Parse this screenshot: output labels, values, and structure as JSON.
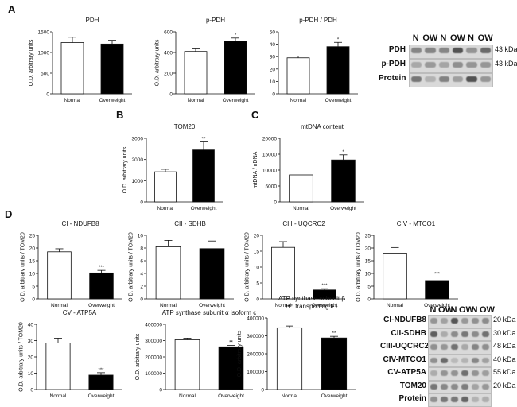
{
  "panel_labels": {
    "a": "A",
    "b": "B",
    "c": "C",
    "d": "D"
  },
  "chart_data": [
    {
      "id": "pdh",
      "type": "bar",
      "title": [
        "PDH"
      ],
      "ylabel": [
        "O.D. arbitrary units"
      ],
      "categories": [
        "Normal",
        "Overweight"
      ],
      "values": [
        1240,
        1205
      ],
      "errors": [
        130,
        90
      ],
      "significance": [
        "",
        ""
      ],
      "ylim": [
        0,
        1500
      ],
      "yticks": [
        "0",
        "500",
        "1000",
        "1500"
      ]
    },
    {
      "id": "ppdh",
      "type": "bar",
      "title": [
        "p-PDH"
      ],
      "ylabel": [
        "O.D. arbitrary units"
      ],
      "categories": [
        "Normal",
        "Overweight"
      ],
      "values": [
        410,
        510
      ],
      "errors": [
        25,
        30
      ],
      "significance": [
        "",
        "*"
      ],
      "ylim": [
        0,
        600
      ],
      "yticks": [
        "0",
        "200",
        "400",
        "600"
      ]
    },
    {
      "id": "ratio",
      "type": "bar",
      "title": [
        "p-PDH / PDH"
      ],
      "ylabel": [
        ""
      ],
      "categories": [
        "Normal",
        "Overweight"
      ],
      "values": [
        29,
        38
      ],
      "errors": [
        1.5,
        3.5
      ],
      "significance": [
        "",
        "*"
      ],
      "ylim": [
        0,
        50
      ],
      "yticks": [
        "0",
        "10",
        "20",
        "30",
        "40",
        "50"
      ]
    },
    {
      "id": "tom20",
      "type": "bar",
      "title": [
        "TOM20"
      ],
      "ylabel": [
        "O.D. arbitrary units"
      ],
      "categories": [
        "Normal",
        "Overweight"
      ],
      "values": [
        1420,
        2450
      ],
      "errors": [
        120,
        380
      ],
      "significance": [
        "",
        "**"
      ],
      "ylim": [
        0,
        3000
      ],
      "yticks": [
        "0",
        "1000",
        "2000",
        "3000"
      ]
    },
    {
      "id": "mtdna",
      "type": "bar",
      "title": [
        "mtDNA content"
      ],
      "ylabel": [
        "mtDNA / nDNA"
      ],
      "categories": [
        "Normal",
        "Overweight"
      ],
      "values": [
        8500,
        13200
      ],
      "errors": [
        900,
        1600
      ],
      "significance": [
        "",
        "*"
      ],
      "ylim": [
        0,
        20000
      ],
      "yticks": [
        "0",
        "5000",
        "10000",
        "15000",
        "20000"
      ]
    },
    {
      "id": "ndufb8",
      "type": "bar",
      "title": [
        "CI - NDUFB8"
      ],
      "ylabel": [
        "O.D. arbitrary units / TOM20"
      ],
      "categories": [
        "Normal",
        "Overweight"
      ],
      "values": [
        18.5,
        10.2
      ],
      "errors": [
        1.2,
        1.0
      ],
      "significance": [
        "",
        "***"
      ],
      "ylim": [
        0,
        25
      ],
      "yticks": [
        "0",
        "5",
        "10",
        "15",
        "20",
        "25"
      ]
    },
    {
      "id": "sdhb",
      "type": "bar",
      "title": [
        "CII - SDHB"
      ],
      "ylabel": [
        "O.D. arbitrary units / TOM20"
      ],
      "categories": [
        "Normal",
        "Overweight"
      ],
      "values": [
        8.2,
        7.9
      ],
      "errors": [
        1.0,
        1.2
      ],
      "significance": [
        "",
        ""
      ],
      "ylim": [
        0,
        10
      ],
      "yticks": [
        "0",
        "2",
        "4",
        "6",
        "8",
        "10"
      ]
    },
    {
      "id": "uqcrc2",
      "type": "bar",
      "title": [
        "CIII - UQCRC2"
      ],
      "ylabel": [
        "O.D. arbitrary units / TOM20"
      ],
      "categories": [
        "Normal",
        "Overweight"
      ],
      "values": [
        16.2,
        2.8
      ],
      "errors": [
        1.8,
        0.4
      ],
      "significance": [
        "",
        "***"
      ],
      "ylim": [
        0,
        20
      ],
      "yticks": [
        "0",
        "5",
        "10",
        "15",
        "20"
      ]
    },
    {
      "id": "mtco1",
      "type": "bar",
      "title": [
        "CIV - MTCO1"
      ],
      "ylabel": [
        "O.D. arbitrary units / TOM20"
      ],
      "categories": [
        "Normal",
        "Overweight"
      ],
      "values": [
        18.0,
        7.2
      ],
      "errors": [
        2.2,
        1.4
      ],
      "significance": [
        "",
        "***"
      ],
      "ylim": [
        0,
        25
      ],
      "yticks": [
        "0",
        "5",
        "10",
        "15",
        "20",
        "25"
      ]
    },
    {
      "id": "atp5a",
      "type": "bar",
      "title": [
        "CV - ATP5A"
      ],
      "ylabel": [
        "O.D. arbitrary units / TOM20"
      ],
      "categories": [
        "Normal",
        "Overweight"
      ],
      "values": [
        28.5,
        8.8
      ],
      "errors": [
        3.0,
        1.5
      ],
      "significance": [
        "",
        "***"
      ],
      "ylim": [
        0,
        40
      ],
      "yticks": [
        "0",
        "10",
        "20",
        "30",
        "40"
      ]
    },
    {
      "id": "atpalpha",
      "type": "bar",
      "title": [
        "ATP synthase subunit α isoform c"
      ],
      "ylabel": [
        "O.D. arbitrary units"
      ],
      "categories": [
        "Normal",
        "Overweight"
      ],
      "values": [
        305000,
        262000
      ],
      "errors": [
        10000,
        9000
      ],
      "significance": [
        "",
        "**"
      ],
      "ylim": [
        0,
        400000
      ],
      "yticks": [
        "0",
        "100000",
        "200000",
        "300000",
        "400000"
      ]
    },
    {
      "id": "atpbeta",
      "type": "bar",
      "title": [
        "ATP synthase subunit β",
        "H⁺ transporting F1"
      ],
      "ylabel": [
        "O.D. arbitrary units"
      ],
      "categories": [
        "Normal",
        "Overweight"
      ],
      "values": [
        345000,
        288000
      ],
      "errors": [
        10000,
        9000
      ],
      "significance": [
        "",
        "**"
      ],
      "ylim": [
        0,
        400000
      ],
      "yticks": [
        "0",
        "100000",
        "200000",
        "300000",
        "400000"
      ]
    }
  ],
  "blot_top": {
    "headers": [
      "N",
      "OW",
      "N",
      "OW",
      "N",
      "OW"
    ],
    "rows": [
      {
        "label": "PDH",
        "kda": "43 kDa"
      },
      {
        "label": "p-PDH",
        "kda": "43 kDa"
      },
      {
        "label": "Protein",
        "kda": ""
      }
    ]
  },
  "blot_bottom": {
    "headers": [
      "N",
      "OW",
      "N",
      "OW",
      "N",
      "OW"
    ],
    "rows": [
      {
        "label": "CI-NDUFB8",
        "kda": "20 kDa"
      },
      {
        "label": "CII-SDHB",
        "kda": "30 kDa"
      },
      {
        "label": "CIII-UQCRC2",
        "kda": "48 kDa"
      },
      {
        "label": "CIV-MTCO1",
        "kda": "40 kDa"
      },
      {
        "label": "CV-ATP5A",
        "kda": "55 kDa"
      },
      {
        "label": "TOM20",
        "kda": "20 kDa"
      },
      {
        "label": "Protein",
        "kda": ""
      }
    ]
  }
}
